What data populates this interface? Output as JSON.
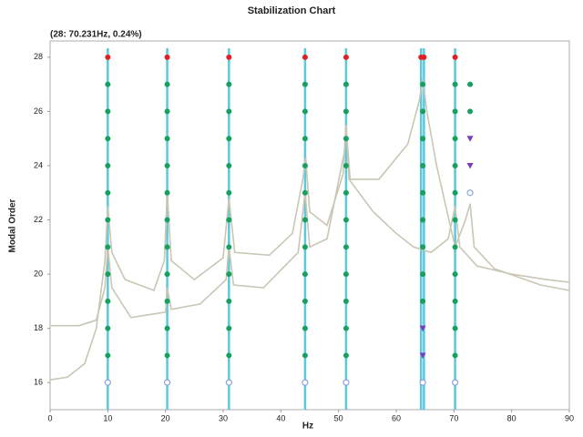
{
  "chart_data": {
    "type": "scatter",
    "title": "Stabilization Chart",
    "subtitle": "(28: 70.231Hz, 0.24%)",
    "x_label": "Hz",
    "y_label": "Modal Order",
    "xlim": [
      0,
      90
    ],
    "ylim": [
      15,
      28.6
    ],
    "xticks": [
      0,
      10,
      20,
      30,
      40,
      50,
      60,
      70,
      80,
      90
    ],
    "yticks": [
      16,
      18,
      20,
      22,
      24,
      26,
      28
    ],
    "pole_lines": {
      "color": "#5bc8dc",
      "x": [
        10,
        20.3,
        31,
        44.2,
        51.3,
        64.3,
        64.8,
        70.2
      ]
    },
    "curves": [
      {
        "color": "#c9c6b4",
        "x": [
          0,
          3,
          6,
          8,
          9.5,
          10,
          10.7,
          13,
          18,
          19.8,
          20.3,
          21,
          25,
          30,
          31,
          32,
          38,
          42,
          43.8,
          44.3,
          45,
          48,
          50.8,
          51.3,
          51.8,
          56,
          60,
          63,
          66,
          69,
          70.2,
          71,
          74,
          80,
          86,
          90
        ],
        "y": [
          16.1,
          16.2,
          16.7,
          18,
          20.5,
          22.5,
          20.8,
          19.8,
          19.4,
          20.5,
          23,
          20.5,
          19.8,
          20.6,
          22.8,
          20.8,
          20.7,
          21.5,
          23.5,
          24.3,
          22.3,
          21.8,
          23.7,
          25.5,
          23.5,
          22.3,
          21.5,
          21,
          20.8,
          21.3,
          22.5,
          21,
          20.3,
          20,
          19.8,
          19.7
        ]
      },
      {
        "color": "#c9c6b4",
        "x": [
          0,
          5,
          8,
          9.5,
          10,
          10.7,
          14,
          20,
          20.3,
          21,
          26,
          30.5,
          31,
          31.8,
          37,
          43,
          44.2,
          45,
          48,
          51,
          51.3,
          52,
          57,
          62,
          64,
          64.6,
          65.3,
          67,
          70.2,
          72,
          72.8,
          73.5,
          77,
          85,
          90
        ],
        "y": [
          18.1,
          18.1,
          18.3,
          19.5,
          21,
          19.5,
          18.4,
          18.6,
          19.5,
          18.7,
          18.9,
          19.8,
          21,
          19.6,
          19.5,
          20.8,
          23,
          21,
          21.3,
          24.5,
          25.5,
          23.5,
          23.5,
          24.8,
          26.4,
          27.2,
          26,
          24,
          21,
          22,
          22.6,
          21,
          20.2,
          19.6,
          19.4
        ]
      }
    ],
    "series": [
      {
        "color": "#18a060",
        "marker": "dot",
        "x": [
          10,
          10,
          10,
          10,
          10,
          10,
          10,
          10,
          10,
          10,
          10,
          20.3,
          20.3,
          20.3,
          20.3,
          20.3,
          20.3,
          20.3,
          20.3,
          20.3,
          20.3,
          20.3,
          31,
          31,
          31,
          31,
          31,
          31,
          31,
          31,
          31,
          31,
          31,
          44.2,
          44.2,
          44.2,
          44.2,
          44.2,
          44.2,
          44.2,
          44.2,
          44.2,
          44.2,
          44.2,
          51.3,
          51.3,
          51.3,
          51.3,
          51.3,
          51.3,
          51.3,
          51.3,
          51.3,
          51.3,
          51.3,
          64.6,
          64.6,
          64.6,
          64.6,
          64.6,
          64.6,
          64.6,
          64.6,
          64.6,
          70.2,
          70.2,
          70.2,
          70.2,
          70.2,
          70.2,
          70.2,
          70.2,
          70.2,
          70.2,
          70.2,
          72.8,
          72.8
        ],
        "y": [
          27,
          26,
          25,
          24,
          23,
          22,
          21,
          20,
          19,
          18,
          17,
          27,
          26,
          25,
          24,
          23,
          22,
          21,
          20,
          19,
          18,
          17,
          27,
          26,
          25,
          24,
          23,
          22,
          21,
          20,
          19,
          18,
          17,
          27,
          26,
          25,
          24,
          23,
          22,
          21,
          20,
          19,
          18,
          17,
          27,
          26,
          25,
          24,
          23,
          22,
          21,
          20,
          19,
          18,
          17,
          27,
          26,
          25,
          24,
          23,
          22,
          21,
          20,
          19,
          27,
          26,
          25,
          24,
          23,
          22,
          21,
          20,
          19,
          18,
          17,
          27,
          26
        ]
      },
      {
        "color": "#e02020",
        "marker": "dot",
        "x": [
          10,
          20.3,
          31,
          44.2,
          51.3,
          64.3,
          64.8,
          70.2
        ],
        "y": [
          28,
          28,
          28,
          28,
          28,
          28,
          28,
          28
        ]
      },
      {
        "color": "#7a3cc0",
        "marker": "triangle",
        "x": [
          64.6,
          64.6,
          72.8,
          72.8
        ],
        "y": [
          18,
          17,
          25,
          24
        ]
      },
      {
        "color": "#8aa4e0",
        "marker": "ring",
        "x": [
          10,
          20.3,
          31,
          44.2,
          51.3,
          64.6,
          70.2,
          72.8
        ],
        "y": [
          16,
          16,
          16,
          16,
          16,
          16,
          16,
          23
        ]
      }
    ]
  }
}
